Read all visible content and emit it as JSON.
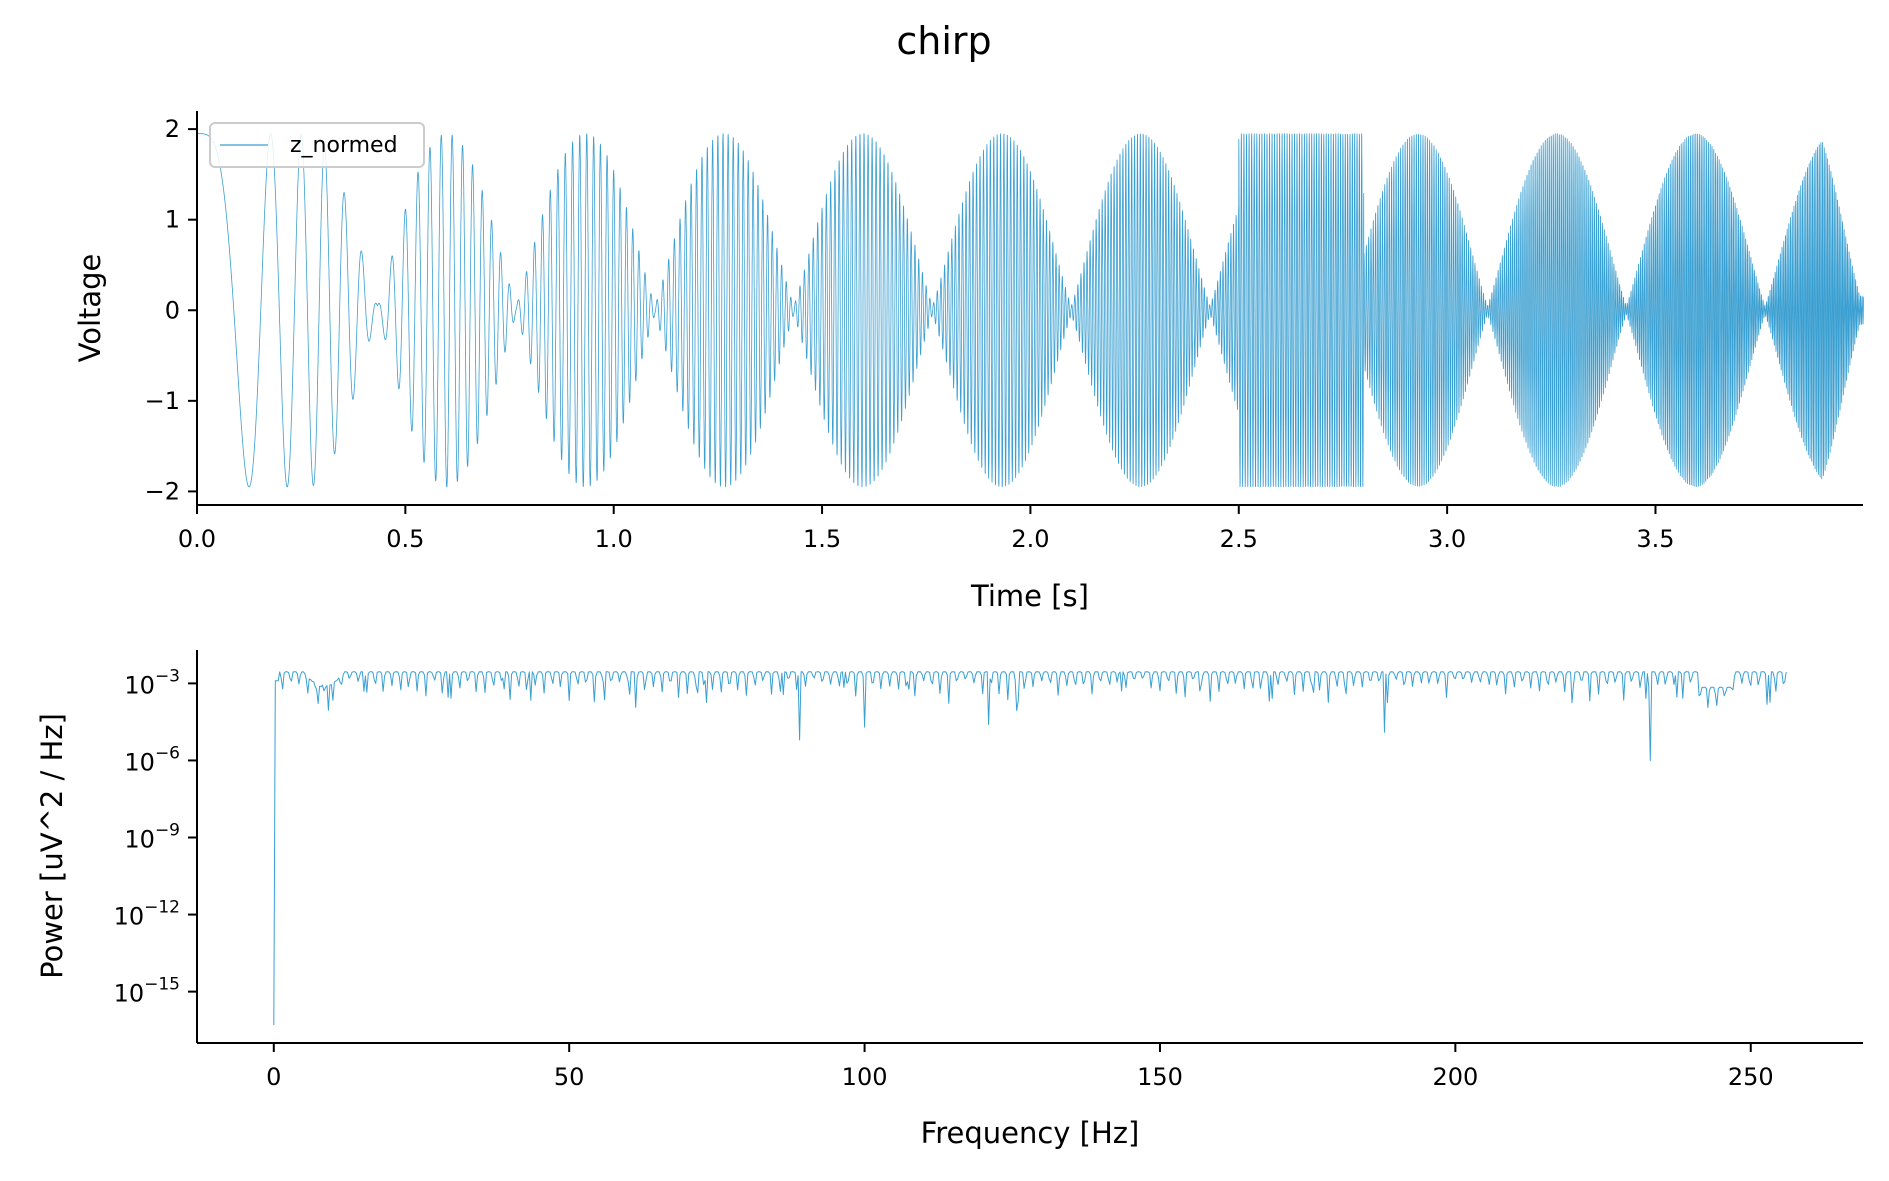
{
  "figure": {
    "title": "chirp"
  },
  "colors": {
    "signal": "#3a9fd1",
    "axis": "#000000",
    "legend_border": "#cccccc"
  },
  "chart_data": [
    {
      "type": "line",
      "xlabel": "Time [s]",
      "ylabel": "Voltage",
      "xlim": [
        0.0,
        3.998
      ],
      "ylim": [
        -2.15,
        2.2
      ],
      "xticks": [
        0.0,
        0.5,
        1.0,
        1.5,
        2.0,
        2.5,
        3.0,
        3.5
      ],
      "xtick_labels": [
        "0.0",
        "0.5",
        "1.0",
        "1.5",
        "2.0",
        "2.5",
        "3.0",
        "3.5"
      ],
      "yticks": [
        2,
        1,
        0,
        -1,
        -2
      ],
      "ytick_labels": [
        "2",
        "1",
        "0",
        "−1",
        "−2"
      ],
      "grid": false,
      "legend": {
        "placement": "upper-left",
        "entries": [
          "z_normed"
        ]
      },
      "series": [
        {
          "name": "z_normed",
          "description_of_shape": "linear chirp with beating envelope",
          "duration_s": 4.0,
          "f_start_hz": 0,
          "f_end_hz": 256,
          "amplitude_peak": 2.0,
          "envelope_nodes_s": [
            0.0,
            0.3,
            0.6,
            0.93,
            1.27,
            1.6,
            1.92,
            2.26,
            2.6,
            2.92,
            3.25,
            3.58,
            3.98
          ],
          "envelope_peaks_s": [
            0.43,
            0.76,
            1.09,
            1.41,
            1.75,
            2.08,
            2.42,
            2.73,
            3.08,
            3.41,
            3.75
          ]
        }
      ]
    },
    {
      "type": "line",
      "xlabel": "Frequency [Hz]",
      "ylabel": "Power [uV^2 / Hz]",
      "yscale": "log",
      "xlim": [
        -13,
        269
      ],
      "ylim_exponent": [
        -17,
        -1.7
      ],
      "xticks": [
        0,
        50,
        100,
        150,
        200,
        250
      ],
      "xtick_labels": [
        "0",
        "50",
        "100",
        "150",
        "200",
        "250"
      ],
      "yticks_exponent": [
        -3,
        -6,
        -9,
        -12,
        -15
      ],
      "ytick_base": "10",
      "ytick_exponents": [
        "−3",
        "−6",
        "−9",
        "−12",
        "−15"
      ],
      "grid": false,
      "series": [
        {
          "name": "",
          "f_min_hz": 0,
          "f_max_hz": 256,
          "log10_power_at_0hz": -16.3,
          "log10_power_plateau": -3.0,
          "dips": [
            {
              "f": 89,
              "log10_power": -5.2
            },
            {
              "f": 100,
              "log10_power": -4.7
            },
            {
              "f": 121,
              "log10_power": -4.6
            },
            {
              "f": 188,
              "log10_power": -4.9
            },
            {
              "f": 233,
              "log10_power": -6.0
            }
          ]
        }
      ]
    }
  ]
}
